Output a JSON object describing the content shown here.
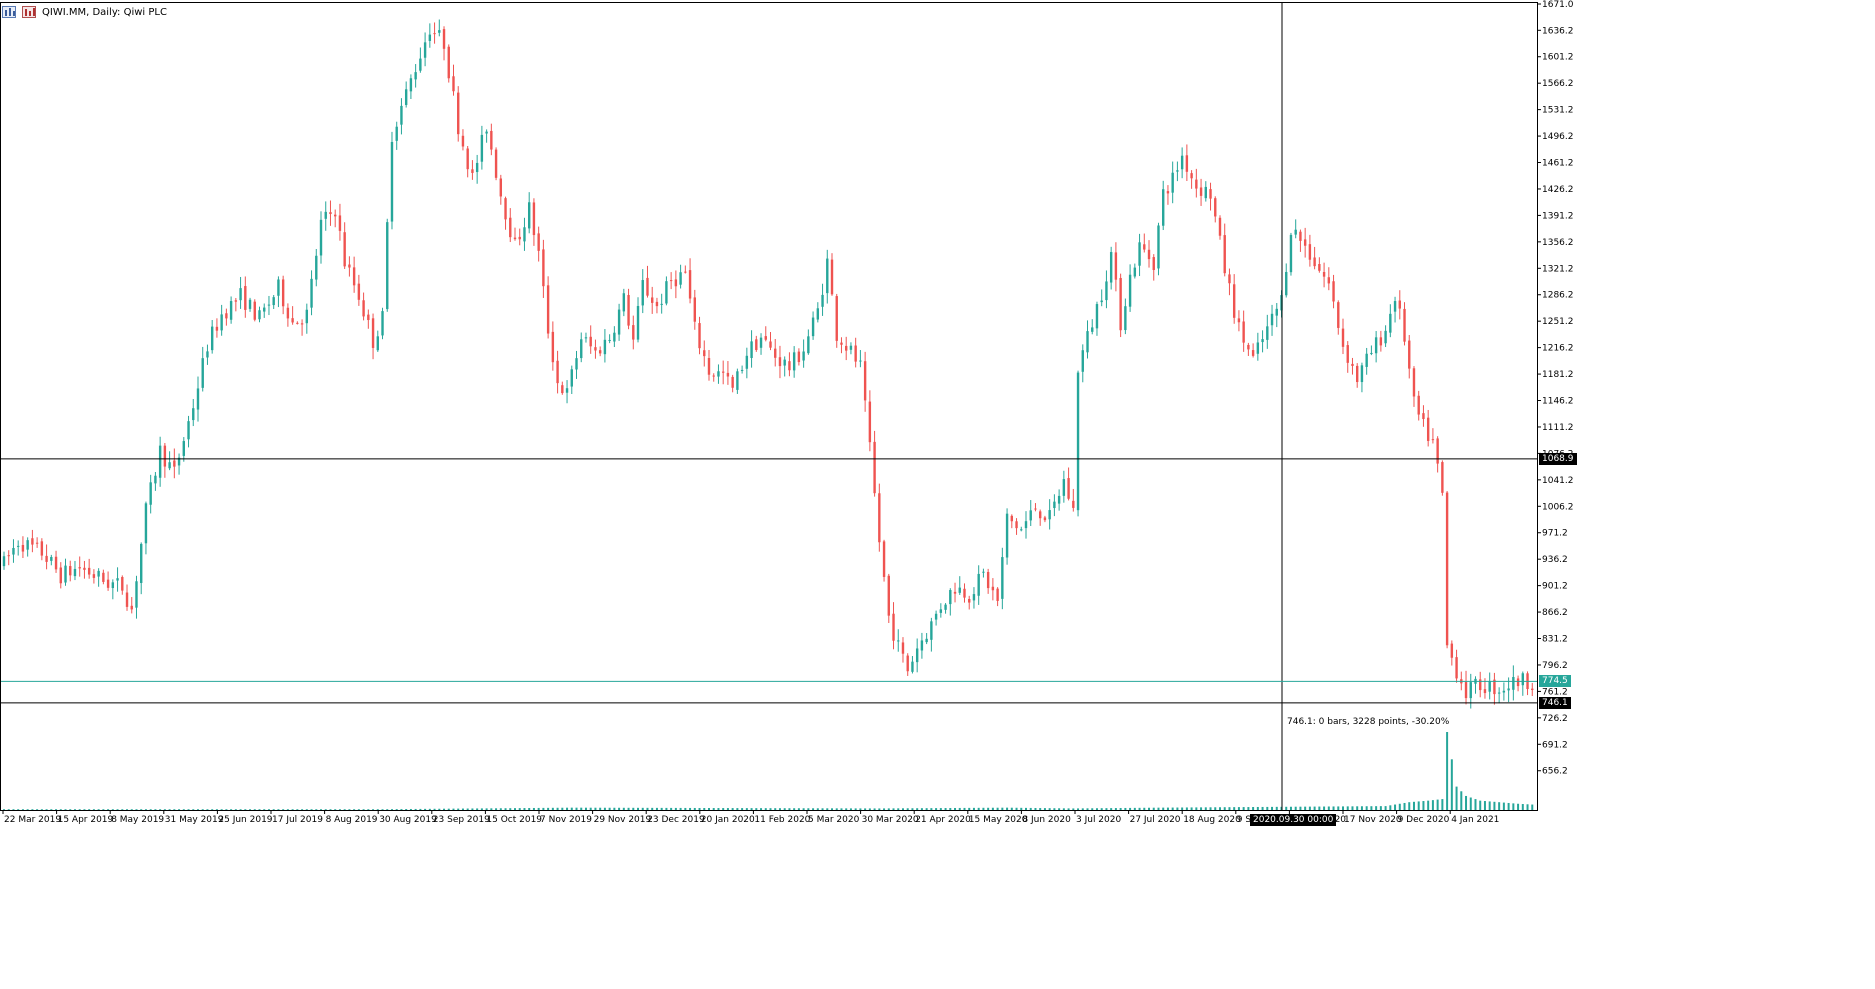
{
  "header": {
    "symbol_text": "QIWI.MM, Daily:  Qiwi PLC",
    "icon_1": "bar-chart-icon",
    "icon_2": "candle-chart-icon"
  },
  "colors": {
    "bull": "#26a69a",
    "bear": "#ef5350",
    "crosshair": "#000000",
    "bid_line": "#26a69a",
    "grid": "#c0c0c0"
  },
  "crosshair": {
    "price_label": "1068.9",
    "time_label": "2020.09.30 00:00",
    "measure_price_label": "746.1",
    "measure_info": "746.1: 0 bars, 3228 points, -30.20%"
  },
  "bid": {
    "price_label": "774.5"
  },
  "chart_data": {
    "type": "candlestick",
    "symbol": "QIWI.MM",
    "timeframe": "Daily",
    "description": "Qiwi PLC",
    "ylim": [
      636,
      1671
    ],
    "price_ticks": [
      "1671.0",
      "1636.2",
      "1601.2",
      "1566.2",
      "1531.2",
      "1496.2",
      "1461.2",
      "1426.2",
      "1391.2",
      "1356.2",
      "1321.2",
      "1286.2",
      "1251.2",
      "1216.2",
      "1181.2",
      "1146.2",
      "1111.2",
      "1076.2",
      "1041.2",
      "1006.2",
      "971.2",
      "936.2",
      "901.2",
      "866.2",
      "831.2",
      "796.2",
      "761.2",
      "726.2",
      "691.2",
      "656.2"
    ],
    "date_ticks": [
      "22 Mar 2019",
      "15 Apr 2019",
      "8 May 2019",
      "31 May 2019",
      "25 Jun 2019",
      "17 Jul 2019",
      "8 Aug 2019",
      "30 Aug 2019",
      "23 Sep 2019",
      "15 Oct 2019",
      "7 Nov 2019",
      "29 Nov 2019",
      "23 Dec 2019",
      "20 Jan 2020",
      "11 Feb 2020",
      "5 Mar 2020",
      "30 Mar 2020",
      "21 Apr 2020",
      "15 May 2020",
      "8 Jun 2020",
      "3 Jul 2020",
      "27 Jul 2020",
      "18 Aug 2020",
      "9 Sep 2020",
      "23 Oct 2020",
      "17 Nov 2020",
      "9 Dec 2020",
      "4 Jan 2021"
    ],
    "anchors": [
      [
        0,
        930
      ],
      [
        3,
        960
      ],
      [
        8,
        945
      ],
      [
        12,
        915
      ],
      [
        16,
        925
      ],
      [
        22,
        905
      ],
      [
        25,
        900
      ],
      [
        27,
        870
      ],
      [
        30,
        1000
      ],
      [
        33,
        1080
      ],
      [
        36,
        1050
      ],
      [
        40,
        1140
      ],
      [
        43,
        1220
      ],
      [
        46,
        1260
      ],
      [
        50,
        1285
      ],
      [
        54,
        1255
      ],
      [
        58,
        1295
      ],
      [
        61,
        1250
      ],
      [
        64,
        1260
      ],
      [
        67,
        1380
      ],
      [
        70,
        1400
      ],
      [
        72,
        1330
      ],
      [
        75,
        1285
      ],
      [
        78,
        1225
      ],
      [
        80,
        1255
      ],
      [
        82,
        1500
      ],
      [
        86,
        1570
      ],
      [
        90,
        1640
      ],
      [
        93,
        1620
      ],
      [
        96,
        1510
      ],
      [
        99,
        1440
      ],
      [
        102,
        1510
      ],
      [
        105,
        1420
      ],
      [
        108,
        1350
      ],
      [
        111,
        1400
      ],
      [
        113,
        1340
      ],
      [
        115,
        1240
      ],
      [
        117,
        1170
      ],
      [
        119,
        1155
      ],
      [
        122,
        1230
      ],
      [
        125,
        1210
      ],
      [
        128,
        1230
      ],
      [
        131,
        1280
      ],
      [
        133,
        1225
      ],
      [
        135,
        1300
      ],
      [
        138,
        1270
      ],
      [
        141,
        1305
      ],
      [
        144,
        1315
      ],
      [
        146,
        1240
      ],
      [
        149,
        1185
      ],
      [
        152,
        1180
      ],
      [
        154,
        1160
      ],
      [
        157,
        1210
      ],
      [
        160,
        1230
      ],
      [
        163,
        1205
      ],
      [
        166,
        1190
      ],
      [
        169,
        1215
      ],
      [
        172,
        1265
      ],
      [
        174,
        1330
      ],
      [
        176,
        1235
      ],
      [
        179,
        1210
      ],
      [
        181,
        1190
      ],
      [
        183,
        1080
      ],
      [
        185,
        960
      ],
      [
        187,
        860
      ],
      [
        189,
        820
      ],
      [
        191,
        790
      ],
      [
        193,
        820
      ],
      [
        196,
        850
      ],
      [
        198,
        875
      ],
      [
        201,
        900
      ],
      [
        204,
        890
      ],
      [
        207,
        915
      ],
      [
        210,
        880
      ],
      [
        212,
        990
      ],
      [
        215,
        975
      ],
      [
        218,
        1005
      ],
      [
        221,
        990
      ],
      [
        224,
        1040
      ],
      [
        226,
        1000
      ],
      [
        227,
        1190
      ],
      [
        229,
        1230
      ],
      [
        232,
        1290
      ],
      [
        234,
        1340
      ],
      [
        236,
        1250
      ],
      [
        238,
        1310
      ],
      [
        240,
        1350
      ],
      [
        243,
        1330
      ],
      [
        245,
        1420
      ],
      [
        247,
        1440
      ],
      [
        249,
        1470
      ],
      [
        252,
        1430
      ],
      [
        255,
        1420
      ],
      [
        258,
        1320
      ],
      [
        261,
        1240
      ],
      [
        264,
        1200
      ],
      [
        267,
        1240
      ],
      [
        270,
        1280
      ],
      [
        272,
        1375
      ],
      [
        274,
        1360
      ],
      [
        277,
        1330
      ],
      [
        280,
        1300
      ],
      [
        283,
        1220
      ],
      [
        286,
        1175
      ],
      [
        289,
        1210
      ],
      [
        292,
        1240
      ],
      [
        294,
        1285
      ],
      [
        296,
        1230
      ],
      [
        298,
        1140
      ],
      [
        300,
        1110
      ],
      [
        302,
        1090
      ],
      [
        304,
        1020
      ],
      [
        305,
        820
      ],
      [
        307,
        790
      ],
      [
        309,
        760
      ],
      [
        312,
        770
      ],
      [
        316,
        765
      ],
      [
        320,
        775
      ],
      [
        323,
        775
      ]
    ],
    "volume_anchors": [
      [
        0,
        1
      ],
      [
        80,
        1
      ],
      [
        120,
        3
      ],
      [
        185,
        2
      ],
      [
        212,
        3
      ],
      [
        226,
        2
      ],
      [
        244,
        3
      ],
      [
        292,
        5
      ],
      [
        297,
        10
      ],
      [
        301,
        12
      ],
      [
        304,
        14
      ],
      [
        305,
        100
      ],
      [
        307,
        30
      ],
      [
        309,
        18
      ],
      [
        312,
        12
      ],
      [
        316,
        10
      ],
      [
        320,
        8
      ],
      [
        323,
        7
      ]
    ]
  }
}
